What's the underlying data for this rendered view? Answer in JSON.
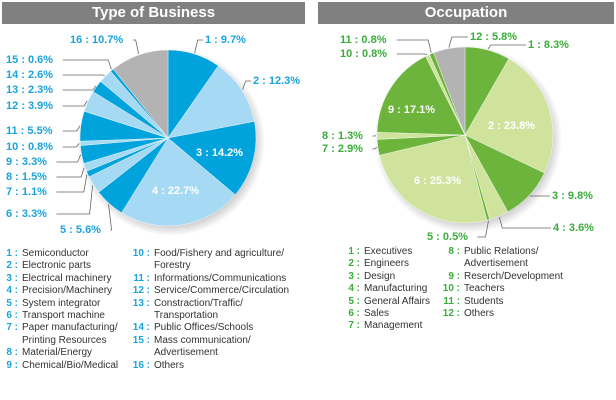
{
  "colors": {
    "blue_dark": "#00a3db",
    "blue_light": "#a6d9f3",
    "grey": "#b3b3b3",
    "green_dark": "#6cb43c",
    "green_light": "#cfe39c",
    "blue_text": "#1aa3dc",
    "green_text": "#3aad3a",
    "header": "#808080"
  },
  "chart_data": [
    {
      "type": "pie",
      "title": "Type of Business",
      "categories": [
        "1",
        "2",
        "3",
        "4",
        "5",
        "6",
        "7",
        "8",
        "9",
        "10",
        "11",
        "12",
        "13",
        "14",
        "15",
        "16"
      ],
      "values": [
        9.7,
        12.3,
        14.2,
        22.7,
        5.6,
        3.3,
        1.1,
        1.5,
        3.3,
        0.8,
        5.5,
        3.9,
        2.3,
        2.6,
        0.6,
        10.7
      ],
      "labels": [
        "1 : 9.7%",
        "2 : 12.3%",
        "3 : 14.2%",
        "4 : 22.7%",
        "5 : 5.6%",
        "6 : 3.3%",
        "7 : 1.1%",
        "8 : 1.5%",
        "9 : 3.3%",
        "10 : 0.8%",
        "11 : 5.5%",
        "12 : 3.9%",
        "13 : 2.3%",
        "14 : 2.6%",
        "15 : 0.6%",
        "16 : 10.7%"
      ],
      "legend": [
        {
          "num": "1 :",
          "text": "Semiconductor"
        },
        {
          "num": "2 :",
          "text": "Electronic parts"
        },
        {
          "num": "3 :",
          "text": "Electrical machinery"
        },
        {
          "num": "4 :",
          "text": "Precision/Machinery"
        },
        {
          "num": "5 :",
          "text": "System integrator"
        },
        {
          "num": "6 :",
          "text": "Transport machine"
        },
        {
          "num": "7 :",
          "text": "Paper manufacturing/\nPrinting Resources"
        },
        {
          "num": "8 :",
          "text": "Material/Energy"
        },
        {
          "num": "9 :",
          "text": "Chemical/Bio/Medical"
        },
        {
          "num": "10 :",
          "text": "Food/Fishery and agriculture/\nForestry"
        },
        {
          "num": "11 :",
          "text": "Informations/Communications"
        },
        {
          "num": "12 :",
          "text": "Service/Commerce/Circulation"
        },
        {
          "num": "13 :",
          "text": "Constraction/Traffic/\nTransportation"
        },
        {
          "num": "14 :",
          "text": "Public Offices/Schools"
        },
        {
          "num": "15 :",
          "text": "Mass communication/\nAdvertisement"
        },
        {
          "num": "16 :",
          "text": "Others"
        }
      ]
    },
    {
      "type": "pie",
      "title": "Occupation",
      "categories": [
        "1",
        "2",
        "3",
        "4",
        "5",
        "6",
        "7",
        "8",
        "9",
        "10",
        "11",
        "12"
      ],
      "values": [
        8.3,
        23.8,
        9.8,
        3.6,
        0.5,
        25.3,
        2.9,
        1.3,
        17.1,
        0.8,
        0.8,
        5.8
      ],
      "labels": [
        "1 : 8.3%",
        "2 : 23.8%",
        "3 : 9.8%",
        "4 : 3.6%",
        "5 : 0.5%",
        "6 : 25.3%",
        "7 : 2.9%",
        "8 : 1.3%",
        "9 : 17.1%",
        "10 : 0.8%",
        "11 : 0.8%",
        "12 : 5.8%"
      ],
      "legend": [
        {
          "num": "1 :",
          "text": "Executives"
        },
        {
          "num": "2 :",
          "text": "Engineers"
        },
        {
          "num": "3 :",
          "text": "Design"
        },
        {
          "num": "4 :",
          "text": "Manufacturing"
        },
        {
          "num": "5 :",
          "text": "General Affairs"
        },
        {
          "num": "6 :",
          "text": "Sales"
        },
        {
          "num": "7 :",
          "text": "Management"
        },
        {
          "num": "8 :",
          "text": "Public Relations/\nAdvertisement"
        },
        {
          "num": "9 :",
          "text": "Reserch/Development"
        },
        {
          "num": "10 :",
          "text": "Teachers"
        },
        {
          "num": "11 :",
          "text": "Students"
        },
        {
          "num": "12 :",
          "text": "Others"
        }
      ]
    }
  ]
}
